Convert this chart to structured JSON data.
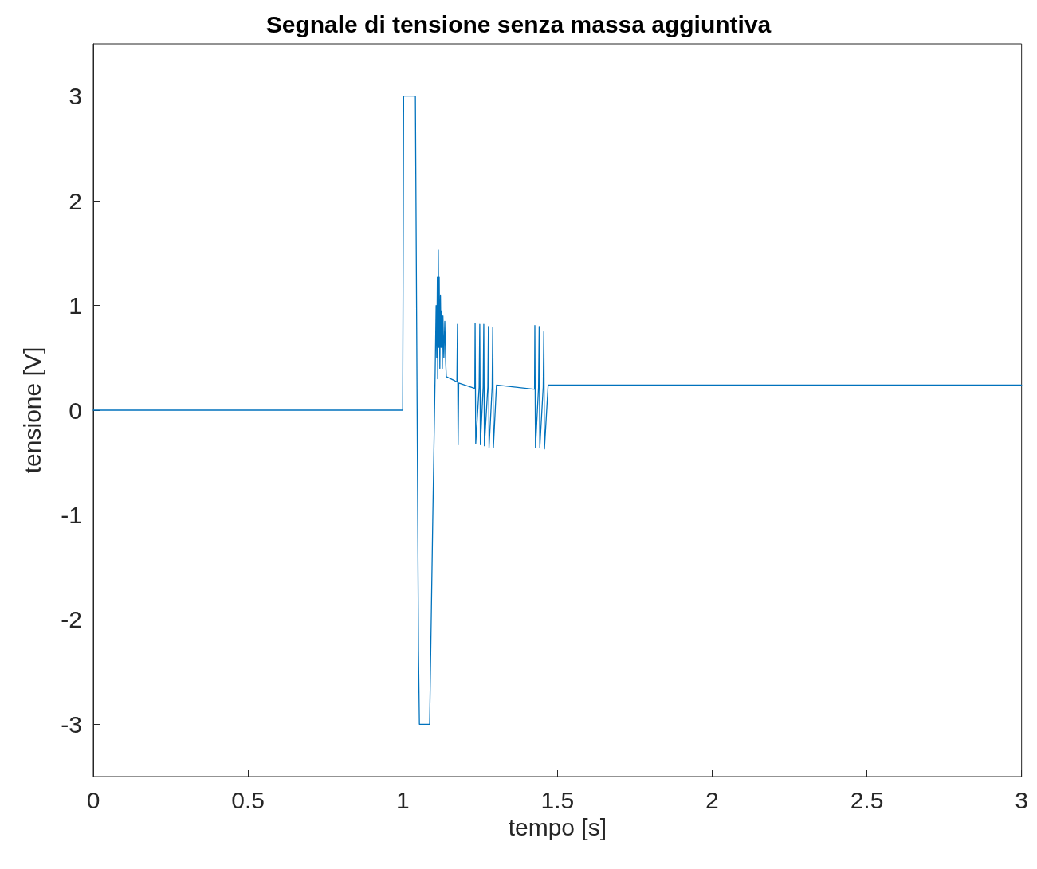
{
  "chart_data": {
    "type": "line",
    "title": "Segnale di tensione senza massa aggiuntiva",
    "xlabel": "tempo [s]",
    "ylabel": "tensione [V]",
    "xlim": [
      0,
      3
    ],
    "xticks": [
      0,
      0.5,
      1,
      1.5,
      2,
      2.5,
      3
    ],
    "ylim": [
      -3.5,
      3.5
    ],
    "yticks": [
      -3,
      -2,
      -1,
      0,
      1,
      2,
      3
    ],
    "grid": false,
    "series": [
      {
        "color": "#0072bd",
        "x": [
          0,
          1.0,
          1.003,
          1.041,
          1.051,
          1.054,
          1.087,
          1.097,
          1.105,
          1.108,
          1.11,
          1.112,
          1.113,
          1.115,
          1.117,
          1.118,
          1.12,
          1.122,
          1.124,
          1.126,
          1.128,
          1.13,
          1.133,
          1.136,
          1.139,
          1.141,
          1.169,
          1.175,
          1.177,
          1.179,
          1.181,
          1.231,
          1.233,
          1.234,
          1.236,
          1.247,
          1.249,
          1.251,
          1.26,
          1.262,
          1.264,
          1.275,
          1.277,
          1.279,
          1.289,
          1.291,
          1.293,
          1.303,
          1.423,
          1.426,
          1.427,
          1.429,
          1.439,
          1.441,
          1.443,
          1.454,
          1.456,
          1.458,
          1.47,
          3
        ],
        "values": [
          0,
          0,
          3,
          3,
          -2.3,
          -3,
          -3,
          -1.06,
          0.38,
          1.0,
          0.5,
          1.27,
          0.3,
          1.53,
          0.6,
          1.27,
          0.4,
          1.1,
          0.6,
          0.95,
          0.4,
          0.9,
          0.5,
          0.85,
          0.45,
          0.32,
          0.28,
          0.27,
          0.82,
          -0.33,
          0.26,
          0.21,
          0.21,
          0.83,
          -0.32,
          0.22,
          0.82,
          -0.33,
          0.22,
          0.82,
          -0.34,
          0.22,
          0.8,
          -0.36,
          0.22,
          0.79,
          -0.36,
          0.24,
          0.2,
          0.2,
          0.81,
          -0.36,
          0.22,
          0.8,
          -0.36,
          0.22,
          0.75,
          -0.37,
          0.24,
          0.24
        ]
      }
    ]
  }
}
